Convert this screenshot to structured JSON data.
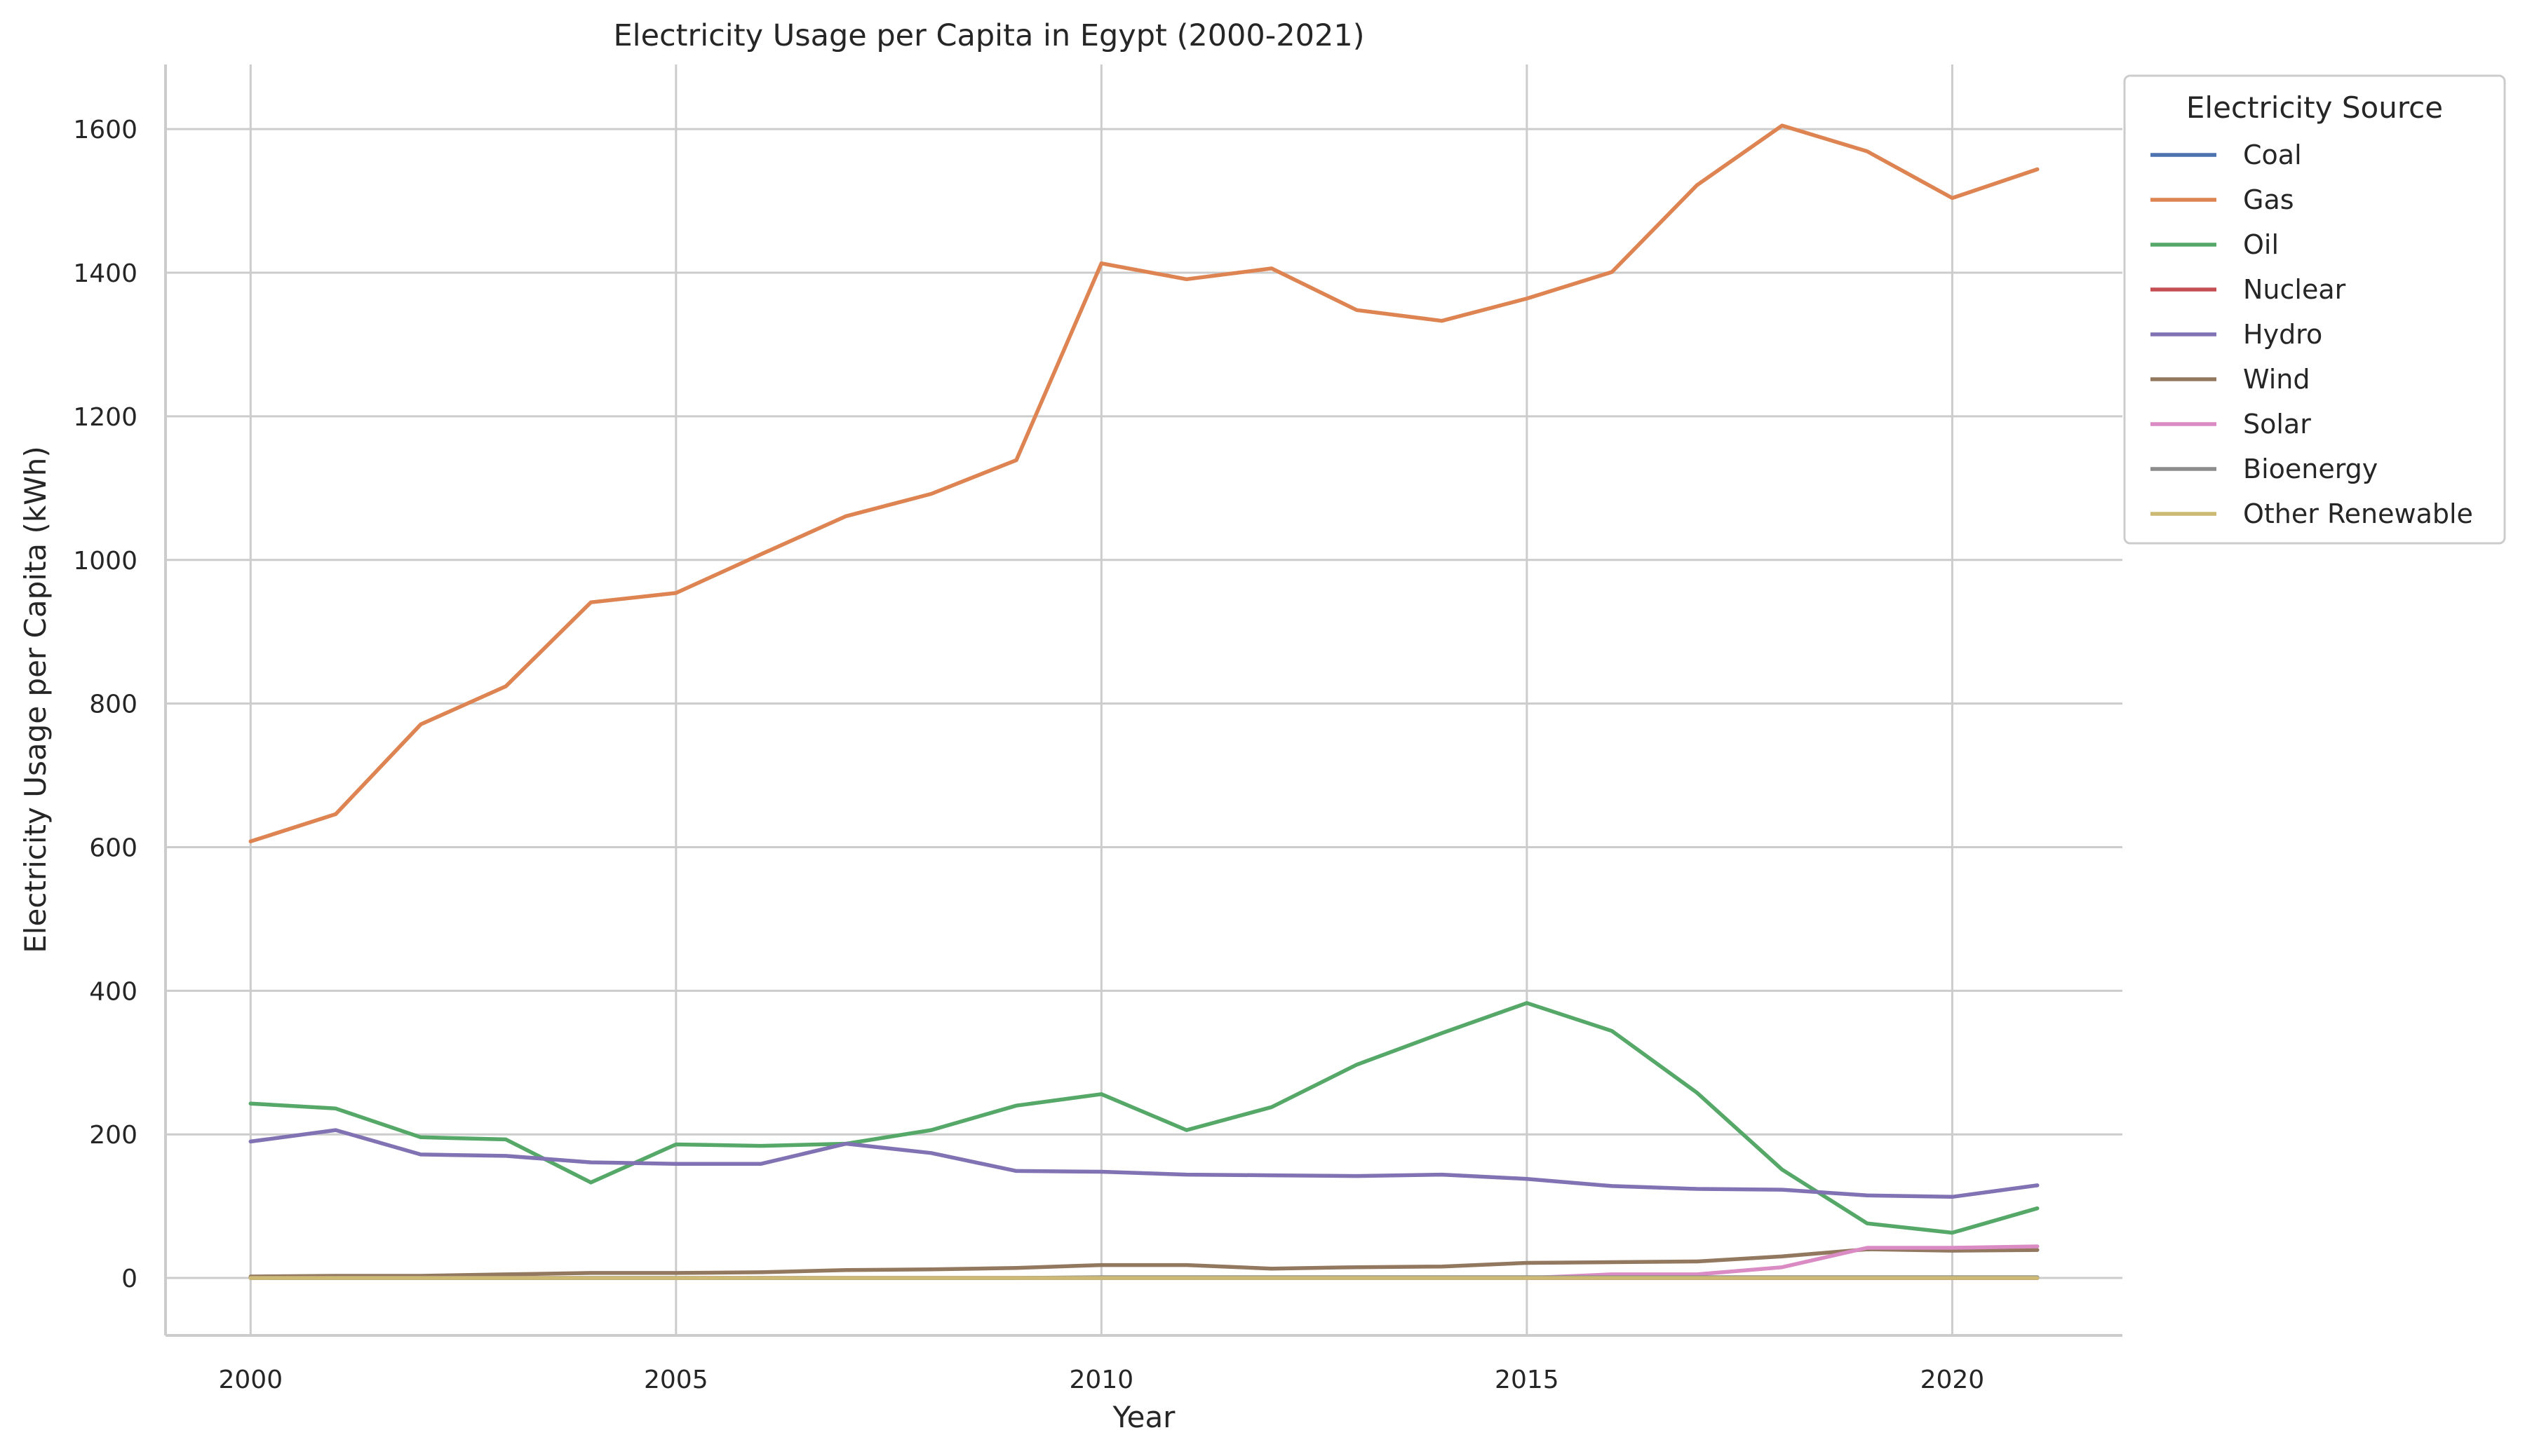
{
  "chart_data": {
    "type": "line",
    "title": "Electricity Usage per Capita in Egypt (2000-2021)",
    "xlabel": "Year",
    "ylabel": "Electricity Usage per Capita (kWh)",
    "xlim": [
      1999,
      2022
    ],
    "ylim": [
      -80,
      1690
    ],
    "xticks": [
      2000,
      2005,
      2010,
      2015,
      2020
    ],
    "yticks": [
      0,
      200,
      400,
      600,
      800,
      1000,
      1200,
      1400,
      1600
    ],
    "grid": true,
    "legend_title": "Electricity Source",
    "legend_position": "outside top-right",
    "x": [
      2000,
      2001,
      2002,
      2003,
      2004,
      2005,
      2006,
      2007,
      2008,
      2009,
      2010,
      2011,
      2012,
      2013,
      2014,
      2015,
      2016,
      2017,
      2018,
      2019,
      2020,
      2021
    ],
    "series": [
      {
        "name": "Coal",
        "color": "#4c72b0",
        "values": [
          0,
          0,
          0,
          0,
          0,
          0,
          0,
          0,
          0,
          0,
          0,
          0,
          0,
          0,
          0,
          0,
          0,
          0,
          0,
          0,
          0,
          0
        ]
      },
      {
        "name": "Gas",
        "color": "#dd8452",
        "values": [
          608,
          646,
          771,
          824,
          941,
          954,
          1008,
          1061,
          1092,
          1139,
          1413,
          1391,
          1406,
          1348,
          1333,
          1364,
          1401,
          1522,
          1605,
          1569,
          1504,
          1544
        ]
      },
      {
        "name": "Oil",
        "color": "#55a868",
        "values": [
          243,
          236,
          196,
          193,
          133,
          186,
          184,
          187,
          206,
          240,
          256,
          206,
          238,
          297,
          341,
          383,
          344,
          258,
          151,
          76,
          63,
          97
        ]
      },
      {
        "name": "Nuclear",
        "color": "#c44e52",
        "values": [
          0,
          0,
          0,
          0,
          0,
          0,
          0,
          0,
          0,
          0,
          0,
          0,
          0,
          0,
          0,
          0,
          0,
          0,
          0,
          0,
          0,
          0
        ]
      },
      {
        "name": "Hydro",
        "color": "#8172b3",
        "values": [
          190,
          206,
          172,
          170,
          161,
          159,
          159,
          187,
          174,
          149,
          148,
          144,
          143,
          142,
          144,
          138,
          128,
          124,
          123,
          115,
          113,
          129
        ]
      },
      {
        "name": "Wind",
        "color": "#937860",
        "values": [
          2,
          3,
          3,
          5,
          7,
          7,
          8,
          11,
          12,
          14,
          18,
          18,
          13,
          15,
          16,
          21,
          22,
          23,
          30,
          40,
          38,
          39
        ]
      },
      {
        "name": "Solar",
        "color": "#da8bc3",
        "values": [
          0,
          0,
          0,
          0,
          0,
          0,
          0,
          0,
          0,
          0,
          0,
          0,
          0,
          0,
          0,
          0,
          5,
          5,
          15,
          42,
          42,
          44
        ]
      },
      {
        "name": "Bioenergy",
        "color": "#8c8c8c",
        "values": [
          0,
          0,
          0,
          0,
          0,
          0,
          0,
          0,
          0,
          0,
          1,
          1,
          1,
          1,
          1,
          1,
          1,
          1,
          1,
          1,
          1,
          1
        ]
      },
      {
        "name": "Other Renewable",
        "color": "#ccb974",
        "values": [
          0,
          0,
          0,
          0,
          0,
          0,
          0,
          0,
          0,
          0,
          0,
          0,
          0,
          0,
          0,
          0,
          0,
          0,
          0,
          0,
          0,
          0
        ]
      }
    ]
  }
}
